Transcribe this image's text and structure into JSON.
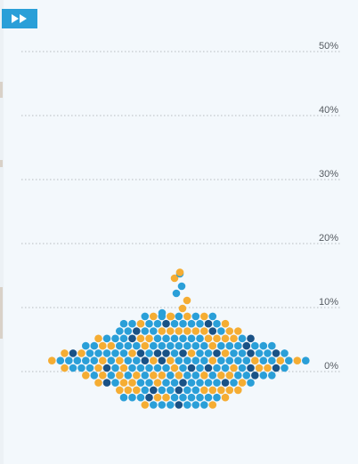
{
  "controls": {
    "play_icon": "fast-forward-icon"
  },
  "colors": {
    "background": "#f3f8fc",
    "button": "#2a9fd8",
    "grid": "#b7bcc0",
    "dot_light_blue": "#2a9fd8",
    "dot_dark_blue": "#1a5286",
    "dot_orange": "#f5ad33"
  },
  "chart_data": {
    "type": "scatter",
    "subtype": "beeswarm",
    "title": "",
    "xlabel": "",
    "ylabel": "",
    "ylim": [
      -5,
      52
    ],
    "y_ticks": [
      "0%",
      "10%",
      "20%",
      "30%",
      "40%",
      "50%"
    ],
    "y_tick_values": [
      0,
      10,
      20,
      30,
      40,
      50
    ],
    "grid": "horizontal dotted",
    "y_axis_position": "right",
    "groups": [
      {
        "color": "dot_light_blue",
        "count": 104
      },
      {
        "color": "dot_orange",
        "count": 52
      },
      {
        "color": "dot_dark_blue",
        "count": 23
      }
    ],
    "max_value": 15.5,
    "min_value": -5
  }
}
